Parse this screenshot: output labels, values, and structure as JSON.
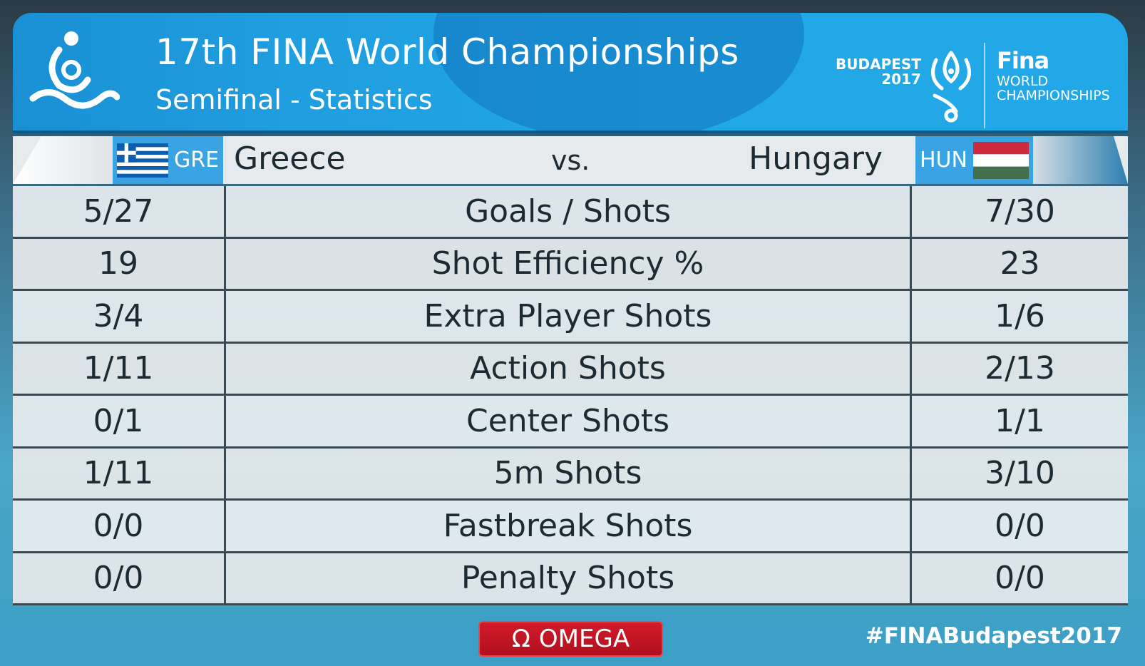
{
  "header": {
    "title": "17th FINA World Championships",
    "subtitle": "Semifinal - Statistics",
    "host_logo": {
      "line1": "BUDAPEST",
      "line2": "2017"
    },
    "fina_logo": {
      "brand": "Fina",
      "line1": "WORLD",
      "line2": "CHAMPIONSHIPS"
    }
  },
  "match": {
    "home": {
      "code": "GRE",
      "name": "Greece"
    },
    "vs": "vs.",
    "away": {
      "code": "HUN",
      "name": "Hungary"
    }
  },
  "stats": [
    {
      "home": "5/27",
      "label": "Goals / Shots",
      "away": "7/30"
    },
    {
      "home": "19",
      "label": "Shot Efficiency %",
      "away": "23"
    },
    {
      "home": "3/4",
      "label": "Extra Player Shots",
      "away": "1/6"
    },
    {
      "home": "1/11",
      "label": "Action Shots",
      "away": "2/13"
    },
    {
      "home": "0/1",
      "label": "Center Shots",
      "away": "1/1"
    },
    {
      "home": "1/11",
      "label": "5m Shots",
      "away": "3/10"
    },
    {
      "home": "0/0",
      "label": "Fastbreak Shots",
      "away": "0/0"
    },
    {
      "home": "0/0",
      "label": "Penalty Shots",
      "away": "0/0"
    }
  ],
  "footer": {
    "sponsor": "OMEGA",
    "sponsor_symbol": "Ω",
    "hashtag": "#FINABudapest2017"
  },
  "colors": {
    "header_blue": "#22a8e6",
    "code_blue": "#3aa3e3",
    "omega_red": "#c8141f"
  }
}
